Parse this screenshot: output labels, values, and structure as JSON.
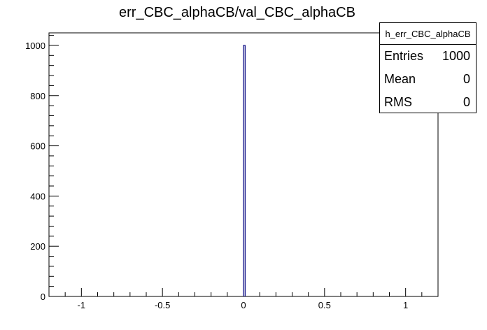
{
  "chart_data": {
    "type": "bar",
    "title": "err_CBC_alphaCB/val_CBC_alphaCB",
    "xlabel": "",
    "ylabel": "",
    "xlim": [
      -1.2,
      1.2
    ],
    "ylim": [
      0,
      1050
    ],
    "x_ticks": [
      -1,
      -0.5,
      0,
      0.5,
      1
    ],
    "x_tick_labels": [
      "-1",
      "-0.5",
      "0",
      "0.5",
      "1"
    ],
    "y_ticks": [
      0,
      200,
      400,
      600,
      800,
      1000
    ],
    "y_tick_labels": [
      "0",
      "200",
      "400",
      "600",
      "800",
      "1000"
    ],
    "bins": [
      {
        "x_low": 0.0,
        "x_high": 0.01,
        "value": 1000
      }
    ],
    "colors": {
      "histogram_line": "#00007f",
      "axes": "#000000"
    },
    "grid": false,
    "legend_position": "top-right"
  },
  "stats_box": {
    "name": "h_err_CBC_alphaCB",
    "rows": [
      {
        "label": "Entries",
        "value": "1000"
      },
      {
        "label": "Mean",
        "value": "0"
      },
      {
        "label": "RMS",
        "value": "0"
      }
    ]
  }
}
